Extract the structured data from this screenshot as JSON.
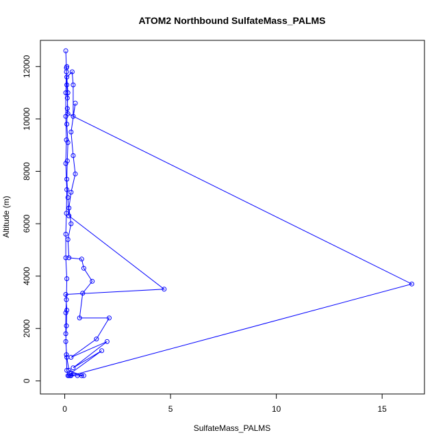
{
  "chart_data": {
    "type": "line",
    "title": "ATOM2 Northbound SulfateMass_PALMS",
    "xlabel": "SulfateMass_PALMS",
    "ylabel": "Altitude (m)",
    "xlim": [
      -1.15,
      17.0
    ],
    "ylim": [
      -500,
      13000
    ],
    "x_ticks": [
      0,
      5,
      10,
      15
    ],
    "y_ticks": [
      0,
      2000,
      4000,
      6000,
      8000,
      10000,
      12000
    ],
    "color": "#0000ff",
    "series": [
      {
        "points": [
          [
            0.05,
            12600
          ],
          [
            0.08,
            11950
          ],
          [
            0.1,
            11300
          ],
          [
            0.12,
            10800
          ],
          [
            0.15,
            10200
          ],
          [
            16.4,
            3700
          ],
          [
            0.3,
            200
          ],
          [
            0.8,
            200
          ],
          [
            0.2,
            400
          ],
          [
            0.1,
            900
          ],
          [
            0.05,
            1500
          ],
          [
            0.08,
            2100
          ],
          [
            0.1,
            2700
          ],
          [
            0.05,
            3300
          ],
          [
            4.7,
            3500
          ],
          [
            0.2,
            6300
          ],
          [
            0.15,
            7000
          ],
          [
            0.1,
            7700
          ],
          [
            0.12,
            8400
          ],
          [
            0.15,
            9100
          ],
          [
            0.1,
            9800
          ],
          [
            0.12,
            10400
          ],
          [
            0.15,
            11000
          ],
          [
            0.1,
            11600
          ],
          [
            0.35,
            11800
          ],
          [
            0.4,
            11300
          ],
          [
            0.4,
            10100
          ],
          [
            0.5,
            10600
          ],
          [
            0.3,
            9500
          ],
          [
            0.4,
            8600
          ],
          [
            0.5,
            7900
          ],
          [
            0.3,
            7200
          ],
          [
            0.2,
            6600
          ],
          [
            0.3,
            6000
          ],
          [
            0.15,
            5400
          ],
          [
            0.2,
            4700
          ],
          [
            0.8,
            4650
          ],
          [
            0.9,
            4300
          ],
          [
            1.3,
            3800
          ],
          [
            0.85,
            3350
          ],
          [
            0.7,
            2400
          ],
          [
            2.1,
            2400
          ],
          [
            1.5,
            1600
          ],
          [
            0.3,
            900
          ],
          [
            2.0,
            1500
          ],
          [
            0.4,
            500
          ],
          [
            1.75,
            1150
          ],
          [
            0.3,
            300
          ],
          [
            0.9,
            200
          ],
          [
            0.6,
            200
          ],
          [
            0.25,
            200
          ],
          [
            0.2,
            200
          ],
          [
            0.15,
            200
          ],
          [
            0.1,
            400
          ],
          [
            0.08,
            1000
          ],
          [
            0.05,
            1800
          ],
          [
            0.05,
            2600
          ],
          [
            0.08,
            3100
          ],
          [
            0.1,
            3900
          ],
          [
            0.05,
            4700
          ],
          [
            0.05,
            5600
          ],
          [
            0.08,
            6400
          ],
          [
            0.1,
            7300
          ],
          [
            0.05,
            8300
          ],
          [
            0.08,
            9200
          ],
          [
            0.05,
            10100
          ],
          [
            0.05,
            11000
          ],
          [
            0.08,
            11800
          ],
          [
            0.1,
            12000
          ]
        ]
      }
    ]
  }
}
